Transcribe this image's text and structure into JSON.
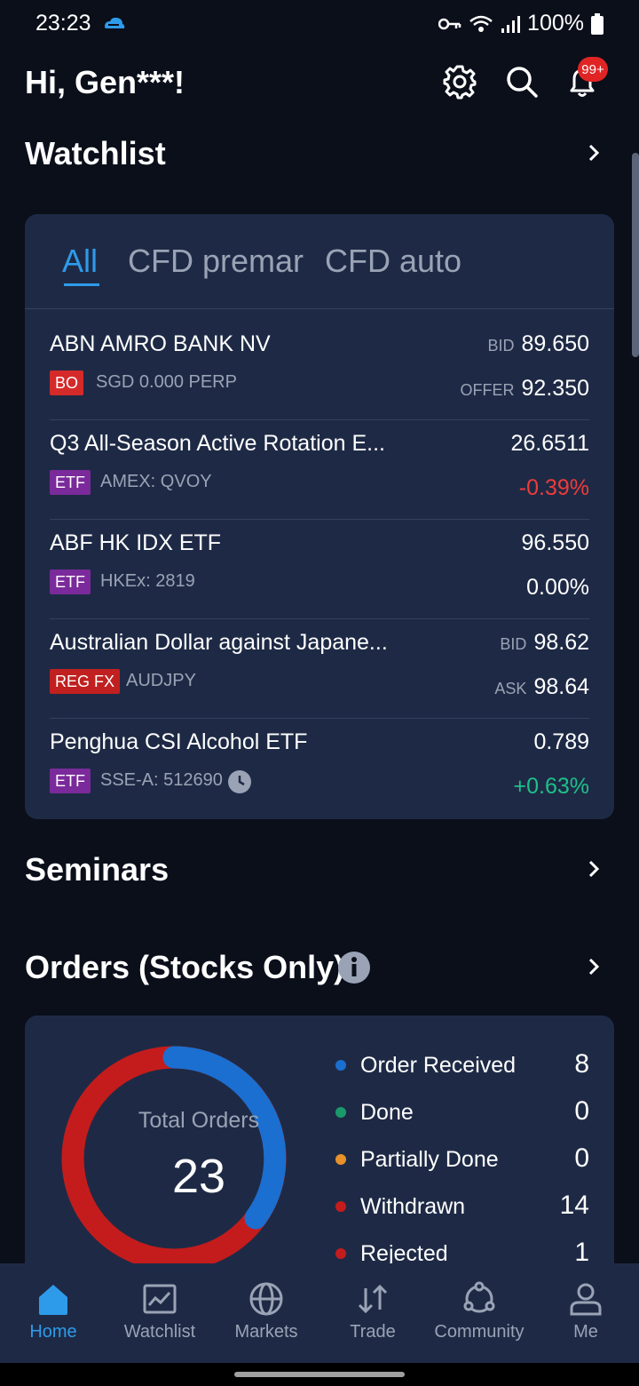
{
  "status": {
    "time": "23:23",
    "battery": "100%"
  },
  "header": {
    "greeting": "Hi, Gen***!",
    "notification_badge": "99+"
  },
  "watchlist": {
    "title": "Watchlist",
    "tabs": [
      "All",
      "CFD premar",
      "CFD auto"
    ],
    "rows": [
      {
        "name": "ABN AMRO BANK NV",
        "tag": "BO",
        "sub": "SGD 0.000 PERP",
        "top_label": "BID",
        "top_value": "89.650",
        "bot_label": "OFFER",
        "bot_value": "92.350"
      },
      {
        "name": "Q3 All-Season Active Rotation E...",
        "tag": "ETF",
        "sub": "AMEX: QVOY",
        "top_value": "26.6511",
        "bot_value": "-0.39%"
      },
      {
        "name": "ABF HK IDX ETF",
        "tag": "ETF",
        "sub": "HKEx: 2819",
        "top_value": "96.550",
        "bot_value": "0.00%"
      },
      {
        "name": "Australian Dollar against Japane...",
        "tag": "REG FX",
        "sub": "AUDJPY",
        "top_label": "BID",
        "top_value": "98.62",
        "bot_label": "ASK",
        "bot_value": "98.64"
      },
      {
        "name": "Penghua CSI Alcohol ETF",
        "tag": "ETF",
        "sub": "SSE-A: 512690",
        "top_value": "0.789",
        "bot_value": "+0.63%"
      }
    ]
  },
  "seminars": {
    "title": "Seminars"
  },
  "orders": {
    "title": "Orders (Stocks Only)",
    "total_label": "Total Orders",
    "total": "23",
    "legend": [
      {
        "label": "Order Received",
        "count": "8",
        "color": "#1a6fd0"
      },
      {
        "label": "Done",
        "count": "0",
        "color": "#1a9a6a"
      },
      {
        "label": "Partially Done",
        "count": "0",
        "color": "#e8912a"
      },
      {
        "label": "Withdrawn",
        "count": "14",
        "color": "#c41c1c"
      },
      {
        "label": "Rejected",
        "count": "1",
        "color": "#c41c1c"
      }
    ]
  },
  "nav": {
    "items": [
      {
        "label": "Home",
        "icon": "home-icon"
      },
      {
        "label": "Watchlist",
        "icon": "chart-icon"
      },
      {
        "label": "Markets",
        "icon": "globe-icon"
      },
      {
        "label": "Trade",
        "icon": "trade-arrows-icon"
      },
      {
        "label": "Community",
        "icon": "community-icon"
      },
      {
        "label": "Me",
        "icon": "user-icon"
      }
    ]
  }
}
